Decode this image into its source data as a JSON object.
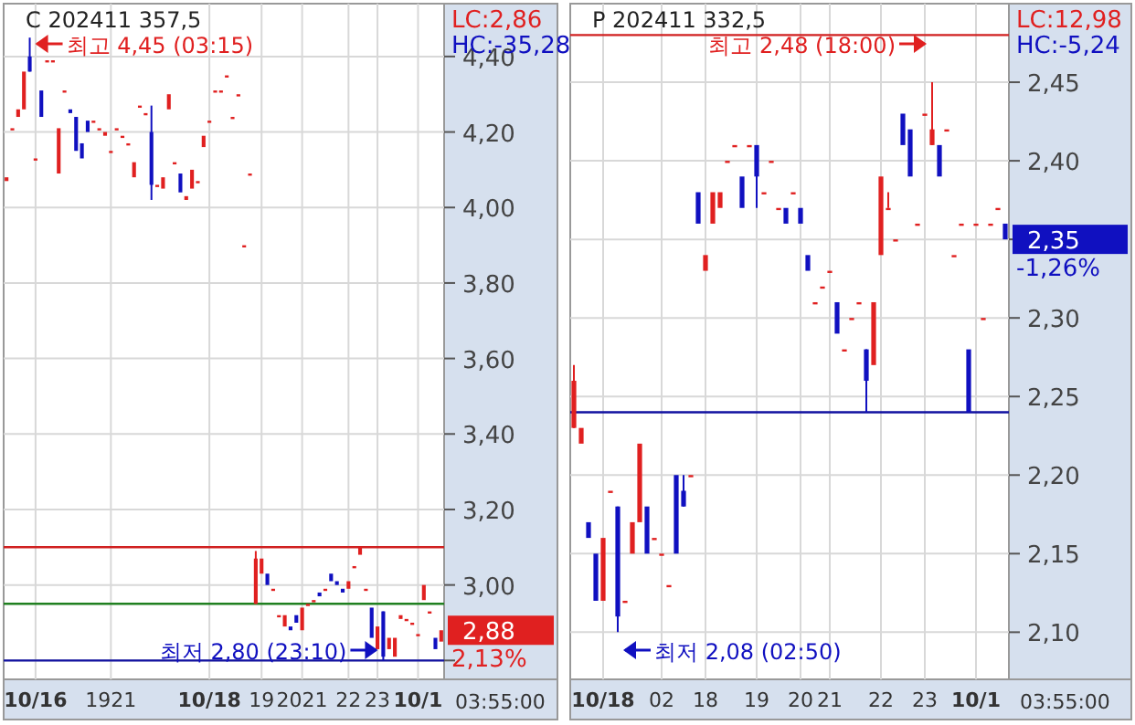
{
  "chart_data": [
    {
      "type": "candlestick",
      "title": "C 202411 357,5",
      "grid": true,
      "categories": [
        null,
        null,
        null,
        null,
        null,
        "10/16",
        null,
        null,
        null,
        null,
        null,
        null,
        null,
        null,
        null,
        null,
        null,
        null,
        "1921",
        null,
        null,
        null,
        null,
        null,
        null,
        null,
        null,
        null,
        null,
        null,
        null,
        null,
        null,
        null,
        null,
        "10/18",
        null,
        null,
        null,
        null,
        null,
        null,
        null,
        null,
        "19",
        null,
        null,
        null,
        null,
        null,
        null,
        "2021",
        null,
        null,
        null,
        null,
        null,
        null,
        null,
        "22",
        null,
        null,
        null,
        null,
        "23",
        null,
        null,
        null,
        null,
        null,
        null,
        "10/1",
        null,
        null,
        null,
        null
      ],
      "ohlc": [
        [
          4.07,
          4.08,
          4.07,
          4.08
        ],
        [
          4.21,
          4.21,
          4.21,
          4.21
        ],
        [
          4.24,
          4.26,
          4.24,
          4.26
        ],
        [
          4.26,
          4.36,
          4.26,
          4.36
        ],
        [
          4.4,
          4.45,
          4.36,
          4.36
        ],
        [
          4.13,
          4.13,
          4.13,
          4.13
        ],
        [
          4.31,
          4.31,
          4.24,
          4.24
        ],
        [
          4.39,
          4.39,
          4.39,
          4.39
        ],
        [
          4.39,
          4.39,
          4.39,
          4.39
        ],
        [
          4.09,
          4.21,
          4.09,
          4.21
        ],
        [
          4.31,
          4.31,
          4.31,
          4.31
        ],
        [
          4.26,
          4.26,
          4.25,
          4.25
        ],
        [
          4.24,
          4.24,
          4.15,
          4.15
        ],
        [
          4.17,
          4.17,
          4.13,
          4.13
        ],
        [
          4.23,
          4.23,
          4.2,
          4.2
        ],
        [
          4.23,
          4.23,
          4.23,
          4.23
        ],
        [
          4.21,
          4.21,
          4.21,
          4.21
        ],
        [
          4.19,
          4.2,
          4.19,
          4.2
        ],
        [
          4.15,
          4.15,
          4.15,
          4.15
        ],
        [
          4.21,
          4.21,
          4.21,
          4.21
        ],
        [
          4.19,
          4.19,
          4.19,
          4.19
        ],
        [
          4.17,
          4.17,
          4.17,
          4.17
        ],
        [
          4.08,
          4.12,
          4.08,
          4.12
        ],
        [
          4.27,
          4.27,
          4.27,
          4.27
        ],
        [
          4.25,
          4.25,
          4.25,
          4.25
        ],
        [
          4.2,
          4.27,
          4.02,
          4.06
        ],
        [
          4.06,
          4.06,
          4.06,
          4.06
        ],
        [
          4.05,
          4.08,
          4.05,
          4.08
        ],
        [
          4.26,
          4.3,
          4.26,
          4.3
        ],
        [
          4.12,
          4.12,
          4.12,
          4.12
        ],
        [
          4.09,
          4.09,
          4.04,
          4.04
        ],
        [
          4.02,
          4.03,
          4.02,
          4.03
        ],
        [
          4.05,
          4.1,
          4.05,
          4.1
        ],
        [
          4.07,
          4.07,
          4.07,
          4.07
        ],
        [
          4.16,
          4.19,
          4.16,
          4.19
        ],
        [
          4.23,
          4.23,
          4.23,
          4.23
        ],
        [
          4.31,
          4.31,
          4.31,
          4.31
        ],
        [
          4.31,
          4.31,
          4.31,
          4.31
        ],
        [
          4.35,
          4.35,
          4.35,
          4.35
        ],
        [
          4.24,
          4.24,
          4.24,
          4.24
        ],
        [
          4.3,
          4.3,
          4.3,
          4.3
        ],
        [
          3.9,
          3.9,
          3.9,
          3.9
        ],
        [
          4.09,
          4.09,
          4.09,
          4.09
        ],
        [
          2.95,
          3.09,
          2.95,
          3.07
        ],
        [
          3.03,
          3.07,
          3.03,
          3.07
        ],
        [
          3.03,
          3.03,
          3.0,
          3.0
        ],
        [
          2.99,
          2.99,
          2.99,
          2.99
        ],
        [
          2.92,
          2.92,
          2.92,
          2.92
        ],
        [
          2.89,
          2.92,
          2.89,
          2.92
        ],
        [
          2.89,
          2.89,
          2.88,
          2.88
        ],
        [
          2.92,
          2.92,
          2.9,
          2.9
        ],
        [
          2.88,
          2.94,
          2.88,
          2.94
        ],
        [
          2.95,
          2.95,
          2.95,
          2.95
        ],
        [
          2.96,
          2.96,
          2.96,
          2.96
        ],
        [
          2.98,
          2.98,
          2.97,
          2.97
        ],
        [
          2.99,
          2.99,
          2.99,
          2.99
        ],
        [
          3.03,
          3.03,
          3.01,
          3.01
        ],
        [
          3.01,
          3.01,
          3.0,
          3.0
        ],
        [
          2.99,
          2.99,
          2.98,
          2.98
        ],
        [
          2.99,
          3.01,
          2.99,
          3.01
        ],
        [
          3.05,
          3.05,
          3.05,
          3.05
        ],
        [
          3.08,
          3.1,
          3.08,
          3.1
        ],
        [
          2.99,
          2.99,
          2.99,
          2.99
        ],
        [
          2.94,
          2.94,
          2.86,
          2.86
        ],
        [
          2.83,
          2.89,
          2.83,
          2.89
        ],
        [
          2.93,
          2.93,
          2.8,
          2.81
        ],
        [
          2.83,
          2.86,
          2.83,
          2.86
        ],
        [
          2.81,
          2.86,
          2.81,
          2.86
        ],
        [
          2.91,
          2.92,
          2.91,
          2.92
        ],
        [
          2.91,
          2.91,
          2.91,
          2.91
        ],
        [
          2.9,
          2.9,
          2.9,
          2.9
        ],
        [
          2.87,
          2.87,
          2.87,
          2.87
        ],
        [
          2.96,
          3.0,
          2.96,
          3.0
        ],
        [
          2.93,
          2.93,
          2.93,
          2.93
        ],
        [
          2.86,
          2.86,
          2.83,
          2.83
        ],
        [
          2.85,
          2.88,
          2.85,
          2.88
        ]
      ],
      "value_labels": [
        null,
        null,
        null,
        null,
        null,
        null,
        null,
        null,
        null,
        null,
        null,
        null,
        null,
        null,
        null,
        null,
        null,
        null,
        null,
        null,
        null,
        null,
        null,
        null,
        null,
        null,
        null,
        null,
        null,
        null,
        null,
        null,
        null,
        null,
        null,
        null,
        null,
        null,
        null,
        null,
        null,
        null,
        null,
        null,
        null,
        null,
        null,
        null,
        null,
        null,
        null,
        null,
        null,
        null,
        null,
        null,
        null,
        null,
        null,
        null,
        null,
        null,
        null,
        null,
        null,
        null,
        null,
        null,
        null,
        null,
        null,
        null,
        null,
        null,
        null,
        "2,88"
      ],
      "ylim": [
        2.75,
        4.54
      ],
      "yticks": [
        {
          "value": 2.8,
          "label": null
        },
        {
          "value": 3.0,
          "label": "3,00"
        },
        {
          "value": 3.2,
          "label": "3,20"
        },
        {
          "value": 3.4,
          "label": "3,40"
        },
        {
          "value": 3.6,
          "label": "3,60"
        },
        {
          "value": 3.8,
          "label": "3,80"
        },
        {
          "value": 4.0,
          "label": "4,00"
        },
        {
          "value": 4.2,
          "label": "4,20"
        },
        {
          "value": 4.4,
          "label": "4,40"
        }
      ],
      "ref_lines": [
        {
          "axis": "y",
          "value": 3.1,
          "color": "#d02020"
        },
        {
          "axis": "y",
          "value": 2.95,
          "color": "#208020"
        },
        {
          "axis": "y",
          "value": 2.8,
          "color": "#1010a0"
        }
      ],
      "annotations": [
        "LC:2,86",
        "HC:-35,28",
        "최고 4,45 (03:15)",
        "최저 2,80 (23:10)",
        "2,13%",
        "03:55:00"
      ]
    },
    {
      "type": "candlestick",
      "title": "P 202411 332,5",
      "grid": true,
      "categories": [
        null,
        null,
        null,
        null,
        "10/18",
        null,
        null,
        null,
        null,
        null,
        null,
        null,
        "02",
        null,
        null,
        null,
        null,
        null,
        "18",
        null,
        null,
        null,
        null,
        null,
        null,
        "19",
        null,
        null,
        null,
        null,
        null,
        "20",
        null,
        null,
        null,
        "21",
        null,
        null,
        null,
        null,
        null,
        null,
        "22",
        null,
        null,
        null,
        null,
        null,
        "23",
        null,
        null,
        null,
        null,
        null,
        null,
        "10/1",
        null,
        null,
        null,
        null
      ],
      "ohlc": [
        [
          2.23,
          2.27,
          2.23,
          2.26
        ],
        [
          2.22,
          2.23,
          2.22,
          2.23
        ],
        [
          2.17,
          2.17,
          2.16,
          2.16
        ],
        [
          2.15,
          2.15,
          2.12,
          2.12
        ],
        [
          2.12,
          2.16,
          2.12,
          2.16
        ],
        [
          2.19,
          2.19,
          2.19,
          2.19
        ],
        [
          2.18,
          2.18,
          2.1,
          2.11
        ],
        [
          2.12,
          2.12,
          2.12,
          2.12
        ],
        [
          2.15,
          2.17,
          2.15,
          2.17
        ],
        [
          2.17,
          2.22,
          2.17,
          2.22
        ],
        [
          2.18,
          2.18,
          2.15,
          2.15
        ],
        [
          2.16,
          2.16,
          2.16,
          2.16
        ],
        [
          2.15,
          2.15,
          2.15,
          2.15
        ],
        [
          2.13,
          2.13,
          2.13,
          2.13
        ],
        [
          2.2,
          2.2,
          2.15,
          2.15
        ],
        [
          2.19,
          2.2,
          2.18,
          2.18
        ],
        [
          2.2,
          2.2,
          2.2,
          2.2
        ],
        [
          2.38,
          2.38,
          2.36,
          2.36
        ],
        [
          2.33,
          2.34,
          2.33,
          2.34
        ],
        [
          2.36,
          2.38,
          2.36,
          2.38
        ],
        [
          2.37,
          2.38,
          2.37,
          2.38
        ],
        [
          2.4,
          2.4,
          2.4,
          2.4
        ],
        [
          2.41,
          2.41,
          2.41,
          2.41
        ],
        [
          2.39,
          2.39,
          2.37,
          2.37
        ],
        [
          2.41,
          2.41,
          2.41,
          2.41
        ],
        [
          2.41,
          2.41,
          2.37,
          2.39
        ],
        [
          2.38,
          2.38,
          2.38,
          2.38
        ],
        [
          2.4,
          2.4,
          2.4,
          2.4
        ],
        [
          2.37,
          2.37,
          2.37,
          2.37
        ],
        [
          2.37,
          2.37,
          2.36,
          2.36
        ],
        [
          2.38,
          2.38,
          2.38,
          2.38
        ],
        [
          2.37,
          2.37,
          2.36,
          2.36
        ],
        [
          2.34,
          2.34,
          2.33,
          2.33
        ],
        [
          2.31,
          2.31,
          2.31,
          2.31
        ],
        [
          2.32,
          2.32,
          2.32,
          2.32
        ],
        [
          2.33,
          2.33,
          2.33,
          2.33
        ],
        [
          2.31,
          2.31,
          2.29,
          2.29
        ],
        [
          2.28,
          2.28,
          2.28,
          2.28
        ],
        [
          2.3,
          2.3,
          2.3,
          2.3
        ],
        [
          2.31,
          2.31,
          2.31,
          2.31
        ],
        [
          2.28,
          2.28,
          2.24,
          2.26
        ],
        [
          2.27,
          2.31,
          2.27,
          2.31
        ],
        [
          2.34,
          2.39,
          2.34,
          2.39
        ],
        [
          2.37,
          2.38,
          2.37,
          2.37
        ],
        [
          2.35,
          2.35,
          2.35,
          2.35
        ],
        [
          2.43,
          2.43,
          2.41,
          2.41
        ],
        [
          2.42,
          2.42,
          2.39,
          2.39
        ],
        [
          2.36,
          2.36,
          2.36,
          2.36
        ],
        [
          2.43,
          2.43,
          2.43,
          2.43
        ],
        [
          2.41,
          2.45,
          2.41,
          2.42
        ],
        [
          2.41,
          2.41,
          2.39,
          2.39
        ],
        [
          2.42,
          2.42,
          2.42,
          2.42
        ],
        [
          2.34,
          2.34,
          2.34,
          2.34
        ],
        [
          2.36,
          2.36,
          2.36,
          2.36
        ],
        [
          2.28,
          2.28,
          2.24,
          2.24
        ],
        [
          2.36,
          2.36,
          2.36,
          2.36
        ],
        [
          2.3,
          2.3,
          2.3,
          2.3
        ],
        [
          2.36,
          2.36,
          2.36,
          2.36
        ],
        [
          2.37,
          2.37,
          2.37,
          2.37
        ],
        [
          2.36,
          2.36,
          2.35,
          2.35
        ]
      ],
      "value_labels": [
        null,
        null,
        null,
        null,
        null,
        null,
        null,
        null,
        null,
        null,
        null,
        null,
        null,
        null,
        null,
        null,
        null,
        null,
        null,
        null,
        null,
        null,
        null,
        null,
        null,
        null,
        null,
        null,
        null,
        null,
        null,
        null,
        null,
        null,
        null,
        null,
        null,
        null,
        null,
        null,
        null,
        null,
        null,
        null,
        null,
        null,
        null,
        null,
        null,
        null,
        null,
        null,
        null,
        null,
        null,
        null,
        null,
        null,
        null,
        "2,35"
      ],
      "ylim": [
        2.07,
        2.5
      ],
      "yticks": [
        {
          "value": 2.1,
          "label": "2,10"
        },
        {
          "value": 2.15,
          "label": "2,15"
        },
        {
          "value": 2.2,
          "label": "2,20"
        },
        {
          "value": 2.25,
          "label": "2,25"
        },
        {
          "value": 2.3,
          "label": "2,30"
        },
        {
          "value": 2.35,
          "label": null
        },
        {
          "value": 2.4,
          "label": "2,40"
        },
        {
          "value": 2.45,
          "label": "2,45"
        }
      ],
      "ref_lines": [
        {
          "axis": "y",
          "value": 2.48,
          "color": "#d02020"
        },
        {
          "axis": "y",
          "value": 2.24,
          "color": "#1010a0"
        }
      ],
      "annotations": [
        "LC:12,98",
        "HC:-5,24",
        "최고 2,48 (18:00)",
        "최저 2,08 (02:50)",
        "-1,26%",
        "03:55:00"
      ]
    }
  ]
}
